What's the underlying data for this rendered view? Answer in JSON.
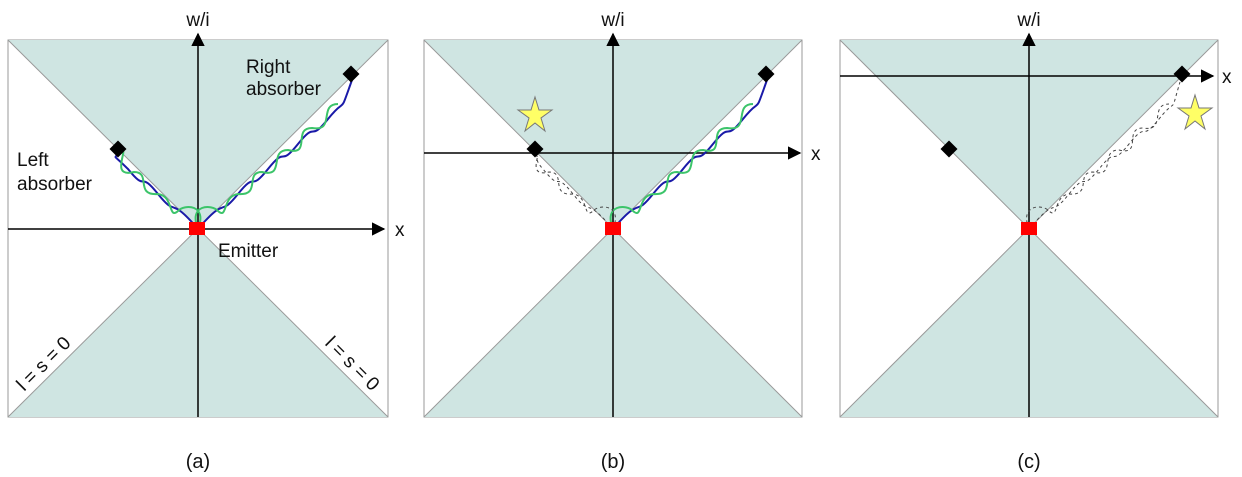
{
  "panels": [
    {
      "caption": "(a)",
      "y_axis_label": "w/i",
      "x_axis_label": "x",
      "emitter_label": "Emitter",
      "right_absorber_label": [
        "Right",
        "absorber"
      ],
      "left_absorber_label": [
        "Left",
        "absorber"
      ],
      "lightcone_label_left": "l = s = 0",
      "lightcone_label_right": "l = s = 0"
    },
    {
      "caption": "(b)",
      "y_axis_label": "w/i",
      "x_axis_label": "x"
    },
    {
      "caption": "(c)",
      "y_axis_label": "w/i",
      "x_axis_label": "x"
    }
  ],
  "colors": {
    "cone_fill": "#cfe5e2",
    "wave_blue": "#1a1aa8",
    "wave_green": "#3cc46a",
    "emitter": "#ff0000",
    "absorber": "#000000",
    "star": "#ffff66",
    "axis": "#000000"
  }
}
